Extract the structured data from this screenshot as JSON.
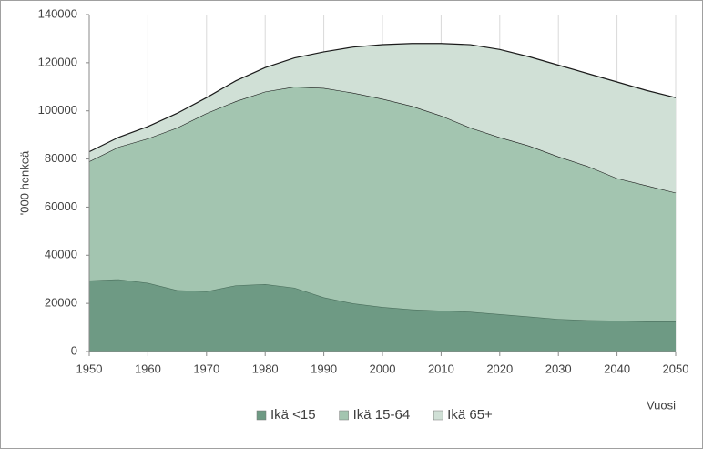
{
  "chart_data": {
    "type": "stacked-area",
    "x_label": "Vuosi",
    "y_label": "'000 henkeä",
    "x": [
      1950,
      1955,
      1960,
      1965,
      1970,
      1975,
      1980,
      1985,
      1990,
      1995,
      2000,
      2005,
      2010,
      2015,
      2020,
      2025,
      2030,
      2035,
      2040,
      2045,
      2050
    ],
    "series": [
      {
        "name": "Ikä <15",
        "color": "#6e9a84",
        "values": [
          29500,
          30000,
          28500,
          25500,
          25000,
          27500,
          28000,
          26500,
          22500,
          20000,
          18500,
          17500,
          17000,
          16500,
          15500,
          14500,
          13500,
          13000,
          12800,
          12500,
          12500
        ]
      },
      {
        "name": "Ikä 15-64",
        "color": "#a3c5b0",
        "values": [
          49500,
          55000,
          60000,
          67500,
          74000,
          76500,
          80000,
          83500,
          87000,
          87500,
          86500,
          84500,
          81000,
          76500,
          73500,
          71000,
          67500,
          64000,
          59200,
          56500,
          53500
        ]
      },
      {
        "name": "Ikä 65+",
        "color": "#d0e0d6",
        "values": [
          4000,
          4000,
          5000,
          6000,
          6500,
          8500,
          10000,
          12000,
          15000,
          19000,
          22500,
          26000,
          30000,
          34500,
          36500,
          37000,
          38000,
          38500,
          40000,
          39500,
          39500
        ]
      }
    ],
    "xlim": [
      1950,
      2050
    ],
    "xticks": [
      1950,
      1960,
      1970,
      1980,
      1990,
      2000,
      2010,
      2020,
      2030,
      2040,
      2050
    ],
    "ylim": [
      0,
      140000
    ],
    "yticks": [
      0,
      20000,
      40000,
      60000,
      80000,
      100000,
      120000,
      140000
    ],
    "grid": true,
    "legend": "bottom"
  }
}
